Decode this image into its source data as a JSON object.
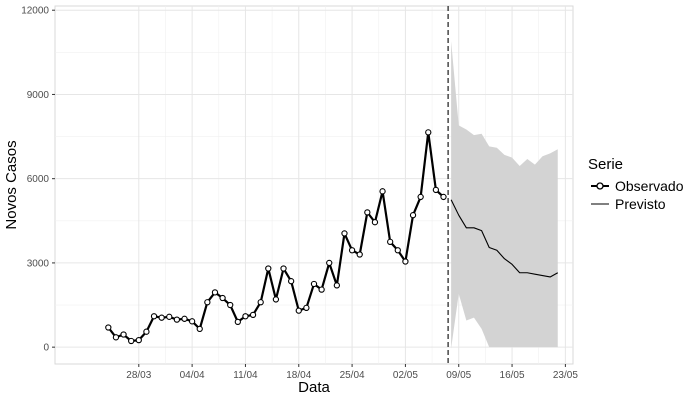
{
  "chart_data": {
    "type": "line",
    "xlabel": "Data",
    "ylabel": "Novos Casos",
    "ylim": [
      -600,
      12150
    ],
    "y_ticks": [
      0,
      3000,
      6000,
      9000,
      12000
    ],
    "y_tick_labels": [
      "0",
      "3000",
      "6000",
      "9000",
      "12000"
    ],
    "x_tick_labels": [
      "28/03",
      "04/04",
      "11/04",
      "18/04",
      "25/04",
      "02/05",
      "09/05",
      "16/05",
      "23/05"
    ],
    "x_tick_dates": [
      "2020-03-28",
      "2020-04-04",
      "2020-04-11",
      "2020-04-18",
      "2020-04-25",
      "2020-05-02",
      "2020-05-09",
      "2020-05-16",
      "2020-05-23"
    ],
    "xlim": [
      "2020-03-17",
      "2020-05-24"
    ],
    "forecast_start": "2020-05-08",
    "grid": true,
    "legend_position": "right",
    "legend": {
      "title": "Serie",
      "items": [
        {
          "label": "Observado",
          "style": "line-with-points"
        },
        {
          "label": "Previsto",
          "style": "line"
        }
      ]
    },
    "series": [
      {
        "name": "Observado",
        "color": "#000000",
        "x": [
          "2020-03-24",
          "2020-03-25",
          "2020-03-26",
          "2020-03-27",
          "2020-03-28",
          "2020-03-29",
          "2020-03-30",
          "2020-03-31",
          "2020-04-01",
          "2020-04-02",
          "2020-04-03",
          "2020-04-04",
          "2020-04-05",
          "2020-04-06",
          "2020-04-07",
          "2020-04-08",
          "2020-04-09",
          "2020-04-10",
          "2020-04-11",
          "2020-04-12",
          "2020-04-13",
          "2020-04-14",
          "2020-04-15",
          "2020-04-16",
          "2020-04-17",
          "2020-04-18",
          "2020-04-19",
          "2020-04-20",
          "2020-04-21",
          "2020-04-22",
          "2020-04-23",
          "2020-04-24",
          "2020-04-25",
          "2020-04-26",
          "2020-04-27",
          "2020-04-28",
          "2020-04-29",
          "2020-04-30",
          "2020-05-01",
          "2020-05-02",
          "2020-05-03",
          "2020-05-04",
          "2020-05-05",
          "2020-05-06",
          "2020-05-07"
        ],
        "values": [
          700,
          350,
          450,
          220,
          250,
          550,
          1100,
          1050,
          1080,
          980,
          1010,
          920,
          650,
          1600,
          1950,
          1750,
          1500,
          900,
          1100,
          1150,
          1600,
          2800,
          1700,
          2800,
          2350,
          1300,
          1400,
          2250,
          2050,
          3000,
          2200,
          4050,
          3450,
          3300,
          4800,
          4450,
          5550,
          3750,
          3450,
          3050,
          4700,
          5350,
          7650,
          5600,
          5350
        ]
      },
      {
        "name": "Previsto",
        "color": "#000000",
        "x": [
          "2020-05-08",
          "2020-05-09",
          "2020-05-10",
          "2020-05-11",
          "2020-05-12",
          "2020-05-13",
          "2020-05-14",
          "2020-05-15",
          "2020-05-16",
          "2020-05-17",
          "2020-05-18",
          "2020-05-19",
          "2020-05-20",
          "2020-05-21",
          "2020-05-22"
        ],
        "values": [
          5250,
          4700,
          4250,
          4250,
          4150,
          3550,
          3450,
          3150,
          2950,
          2650,
          2650,
          2600,
          2550,
          2500,
          2650
        ],
        "upper": [
          10900,
          7900,
          7750,
          7550,
          7600,
          7150,
          7100,
          6850,
          6750,
          6450,
          6700,
          6500,
          6800,
          6900,
          7050
        ],
        "lower": [
          -50,
          1900,
          950,
          1050,
          650,
          0,
          0,
          0,
          0,
          0,
          0,
          0,
          0,
          0,
          0
        ]
      }
    ]
  }
}
